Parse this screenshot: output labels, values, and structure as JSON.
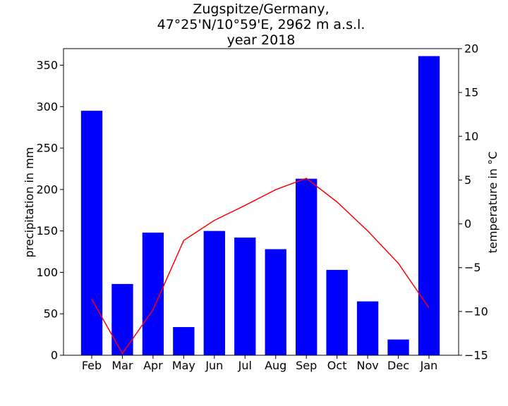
{
  "chart_data": {
    "type": "bar",
    "title": [
      "Zugspitze/Germany,",
      "47°25'N/10°59'E, 2962 m a.s.l.",
      "year 2018"
    ],
    "categories": [
      "Feb",
      "Mar",
      "Apr",
      "May",
      "Jun",
      "Jul",
      "Aug",
      "Sep",
      "Oct",
      "Nov",
      "Dec",
      "Jan"
    ],
    "ylabel": "precipitation in mm",
    "y2label": "temperature in °C",
    "ylim": [
      0,
      370
    ],
    "y2lim": [
      -15,
      20
    ],
    "yticks": [
      0,
      50,
      100,
      150,
      200,
      250,
      300,
      350
    ],
    "y2ticks": [
      -15,
      -10,
      -5,
      0,
      5,
      10,
      15,
      20
    ],
    "series": [
      {
        "type": "bar",
        "axis": "left",
        "color": "#0000ff",
        "values": [
          295,
          86,
          148,
          34,
          150,
          142,
          128,
          213,
          103,
          65,
          19,
          361
        ]
      },
      {
        "type": "line",
        "axis": "right",
        "color": "#ff0000",
        "values": [
          -8.6,
          -14.8,
          -9.8,
          -1.9,
          0.4,
          2.1,
          3.9,
          5.2,
          2.5,
          -0.8,
          -4.5,
          -9.6
        ]
      }
    ],
    "grid": false,
    "legend": "none"
  }
}
